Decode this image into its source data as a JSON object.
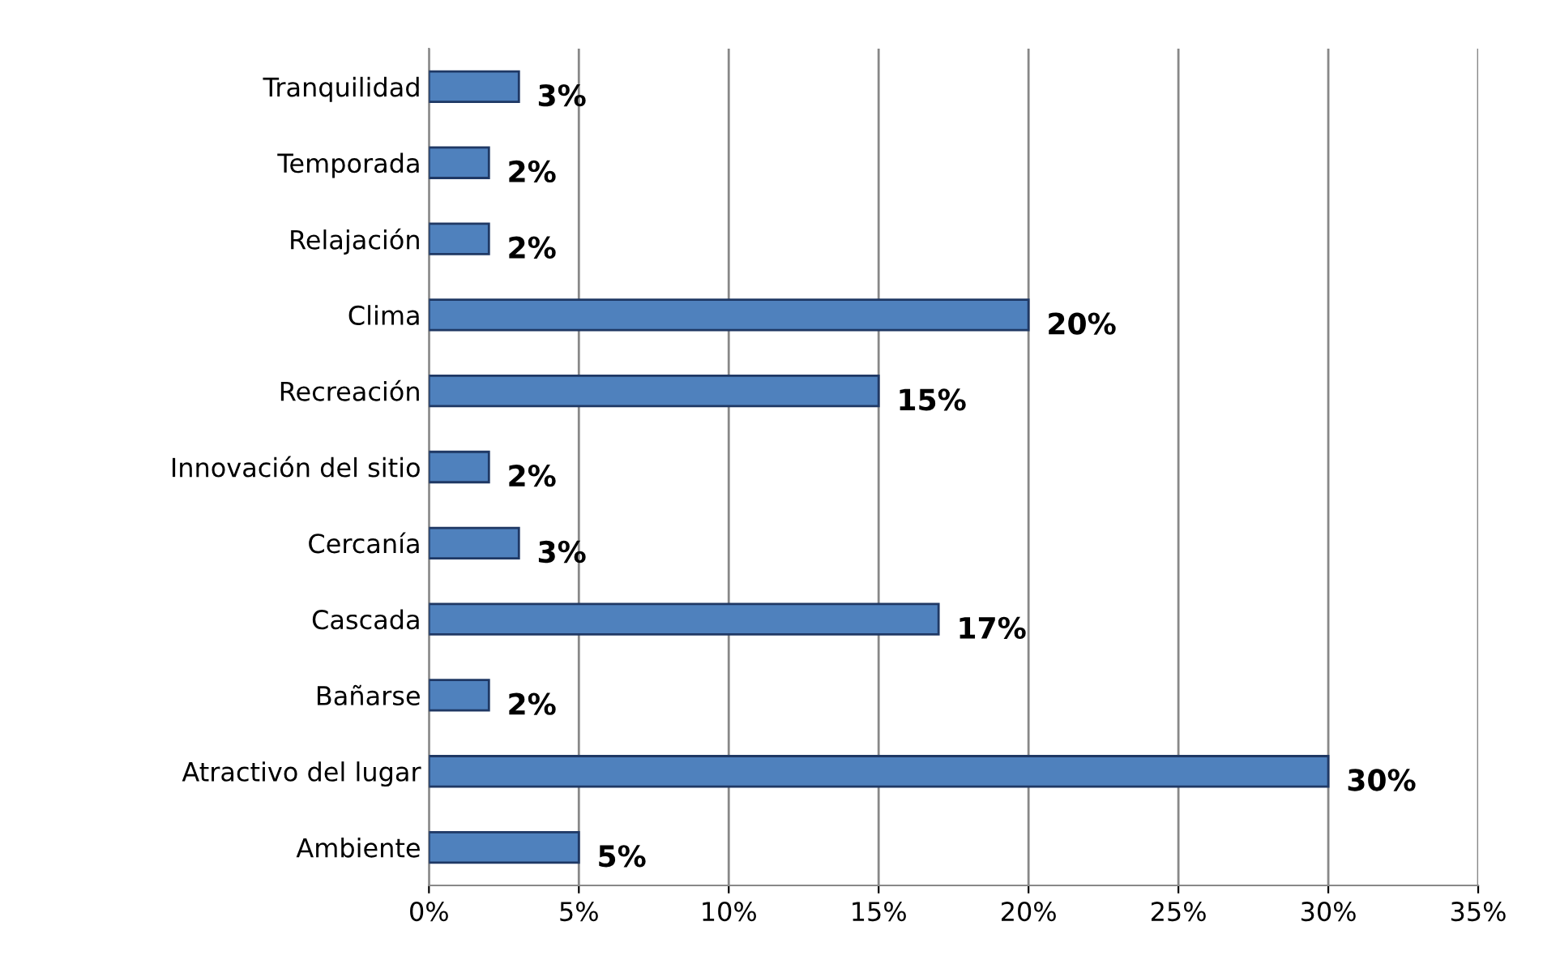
{
  "chart_data": {
    "type": "bar",
    "orientation": "horizontal",
    "categories": [
      "Tranquilidad",
      "Temporada",
      "Relajación",
      "Clima",
      "Recreación",
      "Innovación del sitio",
      "Cercanía",
      "Cascada",
      "Bañarse",
      "Atractivo del lugar",
      "Ambiente"
    ],
    "values": [
      3,
      2,
      2,
      20,
      15,
      2,
      3,
      17,
      2,
      30,
      5
    ],
    "value_labels": [
      "3%",
      "2%",
      "2%",
      "20%",
      "15%",
      "2%",
      "3%",
      "17%",
      "2%",
      "30%",
      "5%"
    ],
    "color": "#4f81bd",
    "xlim": [
      0,
      35
    ],
    "xticks": [
      {
        "value": 0,
        "label": "0%"
      },
      {
        "value": 5,
        "label": "5%"
      },
      {
        "value": 10,
        "label": "10%"
      },
      {
        "value": 15,
        "label": "15%"
      },
      {
        "value": 20,
        "label": "20%"
      },
      {
        "value": 25,
        "label": "25%"
      },
      {
        "value": 30,
        "label": "30%"
      },
      {
        "value": 35,
        "label": "35%"
      }
    ],
    "grid": "x",
    "legend": false
  }
}
